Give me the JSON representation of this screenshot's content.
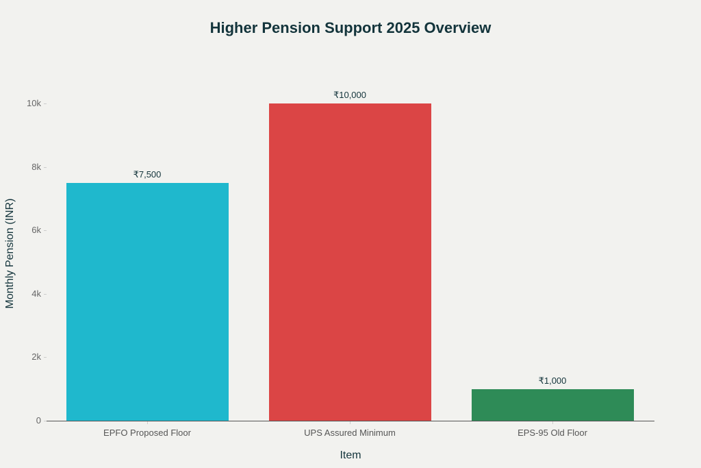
{
  "chart_data": {
    "type": "bar",
    "title": "Higher Pension Support 2025 Overview",
    "xlabel": "Item",
    "ylabel": "Monthly Pension (INR)",
    "categories": [
      "EPFO Proposed Floor",
      "UPS Assured Minimum",
      "EPS-95 Old Floor"
    ],
    "values": [
      7500,
      10000,
      1000
    ],
    "value_labels": [
      "₹7,500",
      "₹10,000",
      "₹1,000"
    ],
    "colors": [
      "#1fb8cd",
      "#db4545",
      "#2e8b57"
    ],
    "yticks": [
      "0",
      "2k",
      "4k",
      "6k",
      "8k",
      "10k"
    ],
    "ytick_values": [
      0,
      2000,
      4000,
      6000,
      8000,
      10000
    ],
    "ylim": [
      0,
      10000
    ],
    "grid": false,
    "legend": "none"
  }
}
